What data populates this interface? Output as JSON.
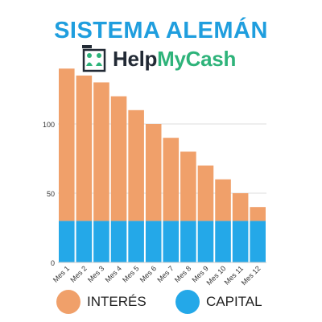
{
  "title": "SISTEMA ALEMÁN",
  "brand": {
    "part1": "Help",
    "part2": "MyCash"
  },
  "colors": {
    "title": "#1f9ede",
    "interes": "#f0a06a",
    "capital": "#24a8e8",
    "grid": "#dddddd",
    "brand_dark": "#222a35",
    "brand_green": "#2eb37a"
  },
  "chart_data": {
    "type": "bar",
    "stacked": true,
    "categories": [
      "Mes 1",
      "Mes 2",
      "Mes 3",
      "Mes 4",
      "Mes 5",
      "Mes 6",
      "Mes 7",
      "Mes 8",
      "Mes 9",
      "Mes 10",
      "Mes 11",
      "Mes 12"
    ],
    "series": [
      {
        "name": "CAPITAL",
        "values": [
          30,
          30,
          30,
          30,
          30,
          30,
          30,
          30,
          30,
          30,
          30,
          30
        ]
      },
      {
        "name": "INTERÉS",
        "values": [
          110,
          105,
          100,
          90,
          80,
          70,
          60,
          50,
          40,
          30,
          20,
          10
        ]
      }
    ],
    "yticks": [
      0,
      50,
      100
    ],
    "ylim": [
      0,
      140
    ],
    "grid": true,
    "legend_position": "bottom",
    "legend": [
      "INTERÉS",
      "CAPITAL"
    ]
  }
}
